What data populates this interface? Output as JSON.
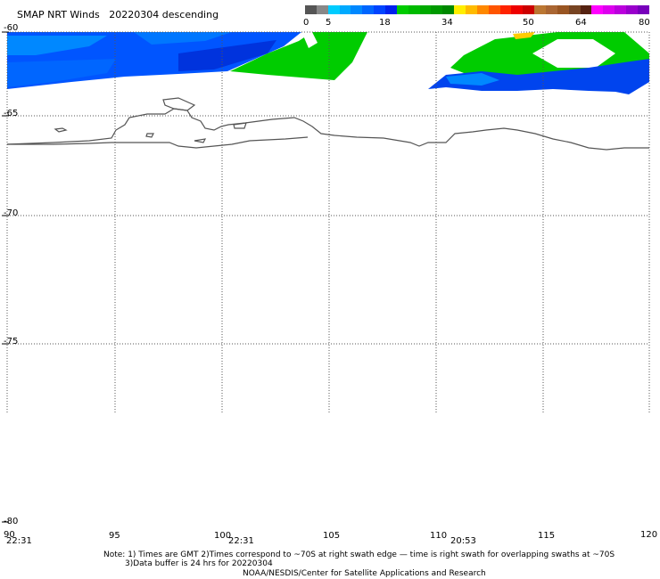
{
  "header": {
    "title": "SMAP NRT Winds",
    "date": "20220304",
    "pass": "descending"
  },
  "colorbar": {
    "labels": [
      "0",
      "5",
      "18",
      "34",
      "50",
      "64",
      "80"
    ],
    "segments": [
      "#555555",
      "#888888",
      "#00ccff",
      "#00aaff",
      "#0088ff",
      "#0066ff",
      "#0044ff",
      "#0022ee",
      "#00cc00",
      "#00bb00",
      "#00aa00",
      "#009900",
      "#008800",
      "#ffee00",
      "#ffbb00",
      "#ff8800",
      "#ff5500",
      "#ff2200",
      "#ee0000",
      "#cc0000",
      "#bb7733",
      "#aa6633",
      "#995522",
      "#774422",
      "#552211",
      "#ff00ff",
      "#dd00ee",
      "#bb00dd",
      "#9900cc",
      "#7700bb"
    ]
  },
  "map": {
    "lat_labels": [
      "-60",
      "-65",
      "-70",
      "-75",
      "-80"
    ],
    "lon_labels": [
      "90",
      "95",
      "100",
      "105",
      "110",
      "115",
      "120"
    ],
    "time_labels": [
      "22:31",
      "22:31",
      "20:53"
    ]
  },
  "footer": {
    "note_line1": "Note: 1) Times are GMT 2)Times correspond to ~70S at right swath edge — time is right swath for overlapping swaths at ~70S",
    "note_line2": "3)Data buffer is 24 hrs for 20220304",
    "credit": "NOAA/NESDIS/Center for Satellite Applications and Research"
  }
}
